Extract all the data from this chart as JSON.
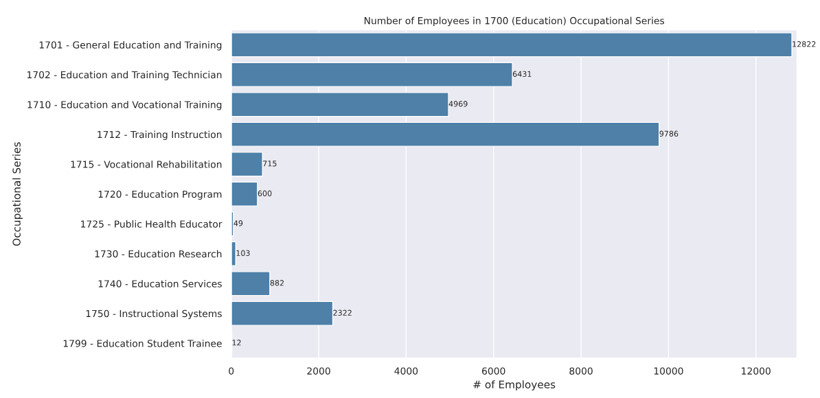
{
  "chart_data": {
    "type": "bar",
    "orientation": "horizontal",
    "title": "Number of Employees in 1700 (Education) Occupational Series",
    "xlabel": "# of Employees",
    "ylabel": "Occupational Series",
    "categories": [
      "1701 - General Education and Training",
      "1702 - Education and Training Technician",
      "1710 - Education and Vocational Training",
      "1712 - Training Instruction",
      "1715 - Vocational Rehabilitation",
      "1720 - Education Program",
      "1725 - Public Health Educator",
      "1730 - Education Research",
      "1740 - Education Services",
      "1750 - Instructional Systems",
      "1799 - Education Student Trainee"
    ],
    "values": [
      12822,
      6431,
      4969,
      9786,
      715,
      600,
      49,
      103,
      882,
      2322,
      12
    ],
    "color": "#4e80a8",
    "data_labels": true,
    "grid": "x",
    "xlim": [
      0,
      12940
    ],
    "xticks": [
      0,
      2000,
      4000,
      6000,
      8000,
      10000,
      12000
    ]
  }
}
